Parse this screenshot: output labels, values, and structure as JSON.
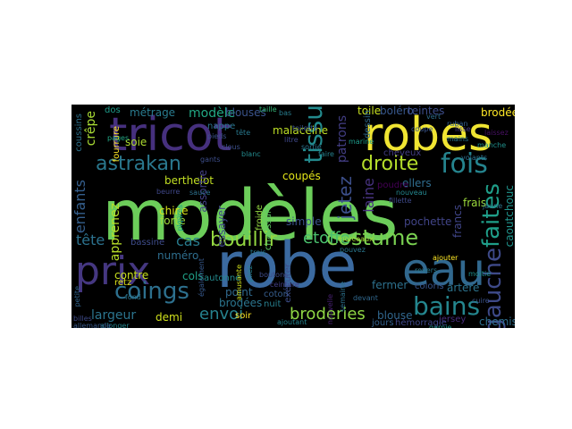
{
  "background_color": "#000000",
  "page_background": "#ffffff",
  "words": [
    {
      "text": "modèles",
      "color": "#6ccd5a"
    },
    {
      "text": "robe",
      "color": "#3b6aa0"
    },
    {
      "text": "robes",
      "color": "#f0e532"
    },
    {
      "text": "tricot",
      "color": "#46307e"
    },
    {
      "text": "eau",
      "color": "#31688e"
    },
    {
      "text": "prix",
      "color": "#453781"
    },
    {
      "text": "fois",
      "color": "#25848e"
    },
    {
      "text": "astrakan",
      "color": "#2a788e"
    },
    {
      "text": "coings",
      "color": "#2d708e"
    },
    {
      "text": "bains",
      "color": "#24868e"
    },
    {
      "text": "costume",
      "color": "#7ad151"
    },
    {
      "text": "droite",
      "color": "#b5de2b"
    },
    {
      "text": "bouillir",
      "color": "#93d741"
    },
    {
      "text": "etoffe",
      "color": "#4ac16d"
    },
    {
      "text": "tissu",
      "color": "#238a8d"
    },
    {
      "text": "faites",
      "color": "#1f9e89"
    },
    {
      "text": "gauche",
      "color": "#3e4a89"
    },
    {
      "text": "broderies",
      "color": "#8fd744"
    },
    {
      "text": "envoi",
      "color": "#26828e"
    },
    {
      "text": "tête",
      "color": "#2c728e"
    },
    {
      "text": "cas",
      "color": "#287c8e"
    },
    {
      "text": "enfants",
      "color": "#355f8d"
    },
    {
      "text": "crêpe",
      "color": "#a8db34"
    },
    {
      "text": "jetez",
      "color": "#3c4f8a"
    },
    {
      "text": "laine",
      "color": "#46327e"
    },
    {
      "text": "largeur",
      "color": "#2b748e"
    },
    {
      "text": "bassine",
      "color": "#3e4c8a"
    },
    {
      "text": "numéro",
      "color": "#2e6e8e"
    },
    {
      "text": "modèle",
      "color": "#22a884"
    },
    {
      "text": "blouses",
      "color": "#3a548c"
    },
    {
      "text": "métrage",
      "color": "#297b8e"
    },
    {
      "text": "toile",
      "color": "#c8e020"
    },
    {
      "text": "boléro",
      "color": "#38588c"
    },
    {
      "text": "brodée",
      "color": "#fde725"
    },
    {
      "text": "teintes",
      "color": "#3d4d8a"
    },
    {
      "text": "malaceine",
      "color": "#bddf26"
    },
    {
      "text": "patrons",
      "color": "#433e85"
    },
    {
      "text": "soie",
      "color": "#addc30"
    },
    {
      "text": "berthelot",
      "color": "#c2df23"
    },
    {
      "text": "assortie",
      "color": "#424086"
    },
    {
      "text": "coupés",
      "color": "#e2e418"
    },
    {
      "text": "pochette",
      "color": "#414487"
    },
    {
      "text": "simple",
      "color": "#3b528b"
    },
    {
      "text": "frais",
      "color": "#9bd93c"
    },
    {
      "text": "ellers",
      "color": "#2f6c8e"
    },
    {
      "text": "francs",
      "color": "#404588"
    },
    {
      "text": "caoutchouc",
      "color": "#20938c"
    },
    {
      "text": "chine",
      "color": "#d8e219"
    },
    {
      "text": "forte",
      "color": "#a0da39"
    },
    {
      "text": "essayer",
      "color": "#3f4788"
    },
    {
      "text": "apprenez",
      "color": "#b8de29"
    },
    {
      "text": "contre",
      "color": "#cae11f"
    },
    {
      "text": "retz",
      "color": "#dde318"
    },
    {
      "text": "point",
      "color": "#306a8e"
    },
    {
      "text": "brodées",
      "color": "#2b758e"
    },
    {
      "text": "cols",
      "color": "#1fa187"
    },
    {
      "text": "autonne",
      "color": "#238a8d"
    },
    {
      "text": "soir",
      "color": "#fde725"
    },
    {
      "text": "coton",
      "color": "#365d8d"
    },
    {
      "text": "nuit",
      "color": "#277f8e"
    },
    {
      "text": "exécuter",
      "color": "#3d4e8a"
    },
    {
      "text": "fermer",
      "color": "#2d718e"
    },
    {
      "text": "blouse",
      "color": "#31678e"
    },
    {
      "text": "coloris",
      "color": "#39558c"
    },
    {
      "text": "artère",
      "color": "#2c738e"
    },
    {
      "text": "demi",
      "color": "#d0e11c"
    },
    {
      "text": "chemise",
      "color": "#2e6f8e"
    },
    {
      "text": "jersey",
      "color": "#472c7a"
    },
    {
      "text": "jours",
      "color": "#34618d"
    },
    {
      "text": "hémorragie",
      "color": "#3f4889"
    },
    {
      "text": "dessin",
      "color": "#2f6b8e"
    },
    {
      "text": "froide",
      "color": "#93d741"
    },
    {
      "text": "chaussure",
      "color": "#5ec962"
    },
    {
      "text": "cheveux",
      "color": "#433d84"
    },
    {
      "text": "poudre",
      "color": "#440154"
    },
    {
      "text": "nappe",
      "color": "#2a768e"
    },
    {
      "text": "coussins",
      "color": "#2c728e"
    },
    {
      "text": "dos",
      "color": "#1e9c89"
    },
    {
      "text": "fourrure",
      "color": "#fde725"
    },
    {
      "text": "pages",
      "color": "#22a785"
    },
    {
      "text": "billes",
      "color": "#3e4a89"
    },
    {
      "text": "taille",
      "color": "#35b779"
    },
    {
      "text": "bas",
      "color": "#287d8e"
    },
    {
      "text": "toilette",
      "color": "#3a548c"
    },
    {
      "text": "coupe",
      "color": "#39558c"
    },
    {
      "text": "mains",
      "color": "#2a788e"
    },
    {
      "text": "nouveau",
      "color": "#24878e"
    },
    {
      "text": "fillette",
      "color": "#3e4989"
    },
    {
      "text": "lisse",
      "color": "#443983"
    },
    {
      "text": "ajouter",
      "color": "#fde725"
    },
    {
      "text": "volants",
      "color": "#2d708e"
    },
    {
      "text": "manche",
      "color": "#21918c"
    },
    {
      "text": "pieds",
      "color": "#3b528b"
    },
    {
      "text": "tête",
      "color": "#29798e"
    },
    {
      "text": "litre",
      "color": "#3f4889"
    },
    {
      "text": "sortie",
      "color": "#2b748e"
    },
    {
      "text": "faire",
      "color": "#26818e"
    },
    {
      "text": "laissez",
      "color": "#471063"
    },
    {
      "text": "ruban",
      "color": "#355e8d"
    },
    {
      "text": "vert",
      "color": "#2e6e8e"
    },
    {
      "text": "marine",
      "color": "#1e9b8a"
    },
    {
      "text": "allonger",
      "color": "#24868e"
    },
    {
      "text": "clous",
      "color": "#3c508b"
    },
    {
      "text": "gants",
      "color": "#3d4e8a"
    },
    {
      "text": "blanc",
      "color": "#238a8d"
    },
    {
      "text": "morceaux",
      "color": "#a5db36"
    },
    {
      "text": "pouvez",
      "color": "#2a778e"
    },
    {
      "text": "amusante",
      "color": "#d2e21b"
    },
    {
      "text": "pliez",
      "color": "#27808e"
    },
    {
      "text": "également",
      "color": "#37598c"
    },
    {
      "text": "ajoutant",
      "color": "#25838e"
    },
    {
      "text": "semaine",
      "color": "#2c728e"
    },
    {
      "text": "nouvelle",
      "color": "#482173"
    },
    {
      "text": "petite",
      "color": "#32658e"
    },
    {
      "text": "fond",
      "color": "#2a768e"
    },
    {
      "text": "boutons",
      "color": "#3e4c8a"
    },
    {
      "text": "ceinture",
      "color": "#433e85"
    },
    {
      "text": "devant",
      "color": "#31688e"
    },
    {
      "text": "revers",
      "color": "#297a8e"
    },
    {
      "text": "garnie",
      "color": "#1f968b"
    },
    {
      "text": "allemande",
      "color": "#38598c"
    },
    {
      "text": "piqûres",
      "color": "#20a386"
    },
    {
      "text": "jaune",
      "color": "#2b758e"
    },
    {
      "text": "cuire",
      "color": "#3b528b"
    },
    {
      "text": "moitié",
      "color": "#21908d"
    },
    {
      "text": "sauce",
      "color": "#2d718e"
    },
    {
      "text": "beurre",
      "color": "#3f4788"
    },
    {
      "text": "trois",
      "color": "#297b8e"
    }
  ]
}
